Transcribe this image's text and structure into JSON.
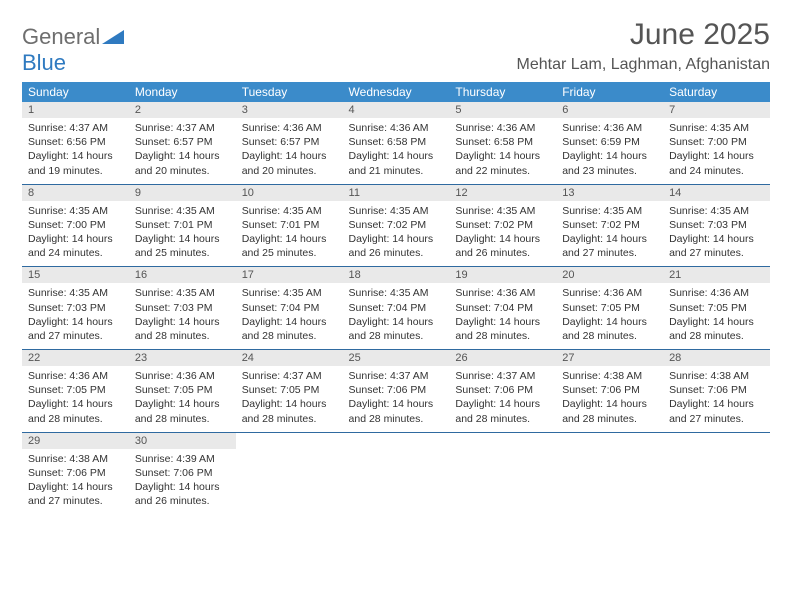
{
  "logo": {
    "part1": "General",
    "part2": "Blue"
  },
  "title": "June 2025",
  "location": "Mehtar Lam, Laghman, Afghanistan",
  "colors": {
    "header_bg": "#3b8bca",
    "header_text": "#ffffff",
    "daynum_bg": "#e9e9e9",
    "border": "#2f6aa0",
    "logo_gray": "#6e6e6e",
    "logo_blue": "#2f7ac0"
  },
  "columns": [
    "Sunday",
    "Monday",
    "Tuesday",
    "Wednesday",
    "Thursday",
    "Friday",
    "Saturday"
  ],
  "weeks": [
    [
      {
        "n": "1",
        "sr": "Sunrise: 4:37 AM",
        "ss": "Sunset: 6:56 PM",
        "d1": "Daylight: 14 hours",
        "d2": "and 19 minutes."
      },
      {
        "n": "2",
        "sr": "Sunrise: 4:37 AM",
        "ss": "Sunset: 6:57 PM",
        "d1": "Daylight: 14 hours",
        "d2": "and 20 minutes."
      },
      {
        "n": "3",
        "sr": "Sunrise: 4:36 AM",
        "ss": "Sunset: 6:57 PM",
        "d1": "Daylight: 14 hours",
        "d2": "and 20 minutes."
      },
      {
        "n": "4",
        "sr": "Sunrise: 4:36 AM",
        "ss": "Sunset: 6:58 PM",
        "d1": "Daylight: 14 hours",
        "d2": "and 21 minutes."
      },
      {
        "n": "5",
        "sr": "Sunrise: 4:36 AM",
        "ss": "Sunset: 6:58 PM",
        "d1": "Daylight: 14 hours",
        "d2": "and 22 minutes."
      },
      {
        "n": "6",
        "sr": "Sunrise: 4:36 AM",
        "ss": "Sunset: 6:59 PM",
        "d1": "Daylight: 14 hours",
        "d2": "and 23 minutes."
      },
      {
        "n": "7",
        "sr": "Sunrise: 4:35 AM",
        "ss": "Sunset: 7:00 PM",
        "d1": "Daylight: 14 hours",
        "d2": "and 24 minutes."
      }
    ],
    [
      {
        "n": "8",
        "sr": "Sunrise: 4:35 AM",
        "ss": "Sunset: 7:00 PM",
        "d1": "Daylight: 14 hours",
        "d2": "and 24 minutes."
      },
      {
        "n": "9",
        "sr": "Sunrise: 4:35 AM",
        "ss": "Sunset: 7:01 PM",
        "d1": "Daylight: 14 hours",
        "d2": "and 25 minutes."
      },
      {
        "n": "10",
        "sr": "Sunrise: 4:35 AM",
        "ss": "Sunset: 7:01 PM",
        "d1": "Daylight: 14 hours",
        "d2": "and 25 minutes."
      },
      {
        "n": "11",
        "sr": "Sunrise: 4:35 AM",
        "ss": "Sunset: 7:02 PM",
        "d1": "Daylight: 14 hours",
        "d2": "and 26 minutes."
      },
      {
        "n": "12",
        "sr": "Sunrise: 4:35 AM",
        "ss": "Sunset: 7:02 PM",
        "d1": "Daylight: 14 hours",
        "d2": "and 26 minutes."
      },
      {
        "n": "13",
        "sr": "Sunrise: 4:35 AM",
        "ss": "Sunset: 7:02 PM",
        "d1": "Daylight: 14 hours",
        "d2": "and 27 minutes."
      },
      {
        "n": "14",
        "sr": "Sunrise: 4:35 AM",
        "ss": "Sunset: 7:03 PM",
        "d1": "Daylight: 14 hours",
        "d2": "and 27 minutes."
      }
    ],
    [
      {
        "n": "15",
        "sr": "Sunrise: 4:35 AM",
        "ss": "Sunset: 7:03 PM",
        "d1": "Daylight: 14 hours",
        "d2": "and 27 minutes."
      },
      {
        "n": "16",
        "sr": "Sunrise: 4:35 AM",
        "ss": "Sunset: 7:03 PM",
        "d1": "Daylight: 14 hours",
        "d2": "and 28 minutes."
      },
      {
        "n": "17",
        "sr": "Sunrise: 4:35 AM",
        "ss": "Sunset: 7:04 PM",
        "d1": "Daylight: 14 hours",
        "d2": "and 28 minutes."
      },
      {
        "n": "18",
        "sr": "Sunrise: 4:35 AM",
        "ss": "Sunset: 7:04 PM",
        "d1": "Daylight: 14 hours",
        "d2": "and 28 minutes."
      },
      {
        "n": "19",
        "sr": "Sunrise: 4:36 AM",
        "ss": "Sunset: 7:04 PM",
        "d1": "Daylight: 14 hours",
        "d2": "and 28 minutes."
      },
      {
        "n": "20",
        "sr": "Sunrise: 4:36 AM",
        "ss": "Sunset: 7:05 PM",
        "d1": "Daylight: 14 hours",
        "d2": "and 28 minutes."
      },
      {
        "n": "21",
        "sr": "Sunrise: 4:36 AM",
        "ss": "Sunset: 7:05 PM",
        "d1": "Daylight: 14 hours",
        "d2": "and 28 minutes."
      }
    ],
    [
      {
        "n": "22",
        "sr": "Sunrise: 4:36 AM",
        "ss": "Sunset: 7:05 PM",
        "d1": "Daylight: 14 hours",
        "d2": "and 28 minutes."
      },
      {
        "n": "23",
        "sr": "Sunrise: 4:36 AM",
        "ss": "Sunset: 7:05 PM",
        "d1": "Daylight: 14 hours",
        "d2": "and 28 minutes."
      },
      {
        "n": "24",
        "sr": "Sunrise: 4:37 AM",
        "ss": "Sunset: 7:05 PM",
        "d1": "Daylight: 14 hours",
        "d2": "and 28 minutes."
      },
      {
        "n": "25",
        "sr": "Sunrise: 4:37 AM",
        "ss": "Sunset: 7:06 PM",
        "d1": "Daylight: 14 hours",
        "d2": "and 28 minutes."
      },
      {
        "n": "26",
        "sr": "Sunrise: 4:37 AM",
        "ss": "Sunset: 7:06 PM",
        "d1": "Daylight: 14 hours",
        "d2": "and 28 minutes."
      },
      {
        "n": "27",
        "sr": "Sunrise: 4:38 AM",
        "ss": "Sunset: 7:06 PM",
        "d1": "Daylight: 14 hours",
        "d2": "and 28 minutes."
      },
      {
        "n": "28",
        "sr": "Sunrise: 4:38 AM",
        "ss": "Sunset: 7:06 PM",
        "d1": "Daylight: 14 hours",
        "d2": "and 27 minutes."
      }
    ],
    [
      {
        "n": "29",
        "sr": "Sunrise: 4:38 AM",
        "ss": "Sunset: 7:06 PM",
        "d1": "Daylight: 14 hours",
        "d2": "and 27 minutes."
      },
      {
        "n": "30",
        "sr": "Sunrise: 4:39 AM",
        "ss": "Sunset: 7:06 PM",
        "d1": "Daylight: 14 hours",
        "d2": "and 26 minutes."
      },
      null,
      null,
      null,
      null,
      null
    ]
  ]
}
